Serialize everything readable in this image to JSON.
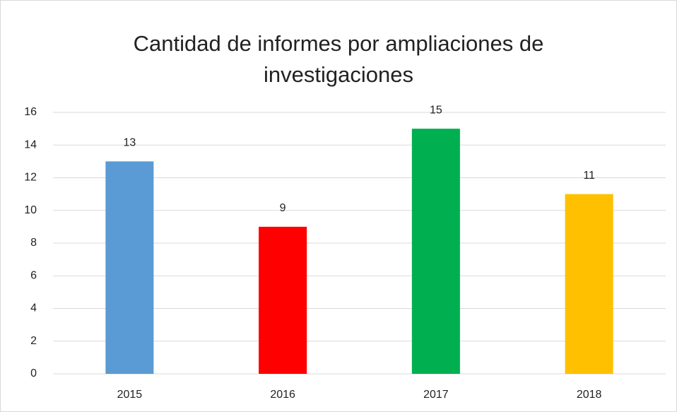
{
  "chart_data": {
    "type": "bar",
    "title": "Cantidad de informes por ampliaciones de investigaciones",
    "categories": [
      "2015",
      "2016",
      "2017",
      "2018"
    ],
    "values": [
      13,
      9,
      15,
      11
    ],
    "colors": [
      "#5b9bd5",
      "#ff0000",
      "#00b050",
      "#ffc000"
    ],
    "ylim": [
      0,
      16
    ],
    "yticks": [
      0,
      2,
      4,
      6,
      8,
      10,
      12,
      14,
      16
    ],
    "grid": true,
    "data_labels": true
  }
}
